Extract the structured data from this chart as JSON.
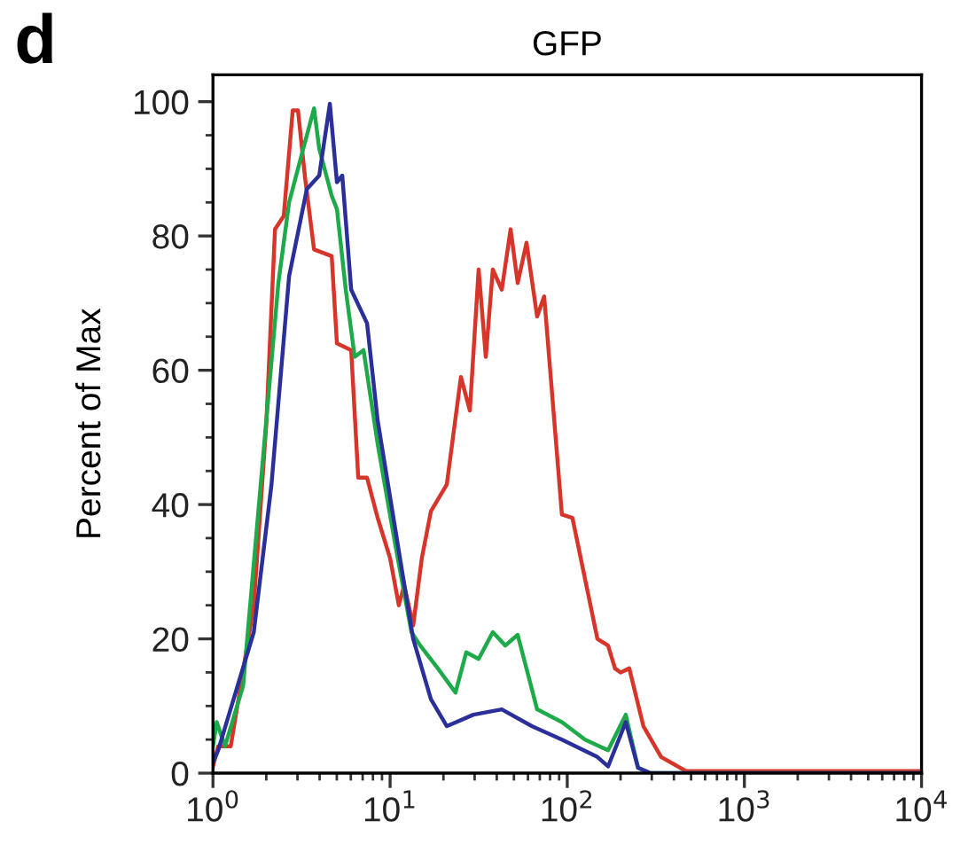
{
  "chart_data": {
    "type": "line",
    "title": "GFP",
    "ylabel": "Percent of Max",
    "annotations": [
      "d"
    ],
    "log": "x",
    "xlim": [
      1,
      10000
    ],
    "ylim": [
      0,
      104
    ],
    "xticks": [
      {
        "value": 1,
        "label": "10$^{0}$"
      },
      {
        "value": 2,
        "label": null
      },
      {
        "value": 3,
        "label": null
      },
      {
        "value": 4,
        "label": null
      },
      {
        "value": 5,
        "label": null
      },
      {
        "value": 6,
        "label": null
      },
      {
        "value": 7,
        "label": null
      },
      {
        "value": 8,
        "label": null
      },
      {
        "value": 9,
        "label": null
      },
      {
        "value": 10,
        "label": "10$^{1}$"
      },
      {
        "value": 20,
        "label": null
      },
      {
        "value": 30,
        "label": null
      },
      {
        "value": 40,
        "label": null
      },
      {
        "value": 50,
        "label": null
      },
      {
        "value": 60,
        "label": null
      },
      {
        "value": 70,
        "label": null
      },
      {
        "value": 80,
        "label": null
      },
      {
        "value": 90,
        "label": null
      },
      {
        "value": 100,
        "label": "10$^{2}$"
      },
      {
        "value": 200,
        "label": null
      },
      {
        "value": 300,
        "label": null
      },
      {
        "value": 400,
        "label": null
      },
      {
        "value": 500,
        "label": null
      },
      {
        "value": 600,
        "label": null
      },
      {
        "value": 700,
        "label": null
      },
      {
        "value": 800,
        "label": null
      },
      {
        "value": 900,
        "label": null
      },
      {
        "value": 1000,
        "label": "10$^{3}$"
      },
      {
        "value": 2000,
        "label": null
      },
      {
        "value": 3000,
        "label": null
      },
      {
        "value": 4000,
        "label": null
      },
      {
        "value": 5000,
        "label": null
      },
      {
        "value": 6000,
        "label": null
      },
      {
        "value": 7000,
        "label": null
      },
      {
        "value": 8000,
        "label": null
      },
      {
        "value": 9000,
        "label": null
      },
      {
        "value": 10000,
        "label": "10$^{4}$"
      }
    ],
    "yticks": [
      0,
      {
        "value": 5,
        "label": null
      },
      {
        "value": 10,
        "label": null
      },
      {
        "value": 15,
        "label": null
      },
      20,
      {
        "value": 25,
        "label": null
      },
      {
        "value": 30,
        "label": null
      },
      {
        "value": 35,
        "label": null
      },
      40,
      {
        "value": 45,
        "label": null
      },
      {
        "value": 50,
        "label": null
      },
      {
        "value": 55,
        "label": null
      },
      60,
      {
        "value": 65,
        "label": null
      },
      {
        "value": 70,
        "label": null
      },
      {
        "value": 75,
        "label": null
      },
      80,
      {
        "value": 85,
        "label": null
      },
      {
        "value": 90,
        "label": null
      },
      {
        "value": 95,
        "label": null
      },
      100
    ],
    "grid": false,
    "marker": "none",
    "line_style": "solid",
    "series": [
      {
        "color": "#d8352a",
        "x": [
          1.0,
          1.07,
          1.26,
          1.7,
          2.0,
          2.24,
          2.51,
          2.82,
          3.02,
          3.31,
          3.72,
          4.68,
          5.01,
          6.03,
          6.61,
          7.41,
          8.51,
          10.0,
          11.2,
          12.0,
          13.5,
          15.1,
          17.0,
          20.9,
          25.1,
          28.2,
          31.6,
          34.7,
          38.0,
          42.7,
          47.9,
          52.5,
          58.9,
          67.6,
          74.1,
          93.3,
          107,
          148,
          170,
          186,
          200,
          224,
          269,
          339,
          468,
          10000
        ],
        "values": [
          1,
          4,
          4,
          25,
          52,
          81,
          83,
          98.7,
          98.7,
          88.7,
          78,
          77,
          64,
          63,
          44,
          44,
          38,
          32,
          25,
          28,
          22,
          32,
          39,
          43,
          59,
          54,
          75,
          62,
          75,
          72,
          81,
          73,
          79,
          68,
          71,
          38.5,
          38,
          20,
          19,
          15.6,
          15,
          15.6,
          7,
          2.4,
          0.3,
          0.3
        ]
      },
      {
        "color": "#1faa4a",
        "x": [
          1.0,
          1.05,
          1.17,
          1.48,
          1.86,
          2.34,
          2.69,
          3.16,
          3.72,
          3.98,
          4.68,
          5.01,
          5.62,
          6.31,
          7.08,
          8.51,
          10.7,
          13.2,
          14.8,
          18.6,
          23.4,
          26.9,
          31.6,
          38.0,
          44.7,
          52.5,
          67.6,
          93.3,
          126,
          170,
          214,
          251,
          295,
          10000
        ],
        "values": [
          4,
          7.6,
          4,
          13,
          43,
          73,
          85,
          92,
          99,
          93,
          86,
          84,
          72,
          62,
          63,
          49,
          34,
          21,
          19,
          15.6,
          12,
          18,
          17,
          21,
          19,
          20.6,
          9.5,
          7.6,
          5,
          3.4,
          8.7,
          0.8,
          0,
          0
        ]
      },
      {
        "color": "#2b2f9a",
        "x": [
          1.0,
          1.07,
          1.7,
          2.14,
          2.69,
          3.39,
          3.98,
          4.57,
          5.01,
          5.37,
          6.03,
          7.41,
          8.51,
          11.7,
          13.5,
          17.0,
          20.9,
          29.5,
          42.7,
          63.1,
          93.3,
          148,
          170,
          214,
          251,
          295,
          10000
        ],
        "values": [
          1.6,
          3.4,
          21,
          43,
          74,
          87,
          89,
          99.7,
          88,
          89,
          72,
          67,
          52.5,
          30,
          20,
          11,
          7,
          8.7,
          9.5,
          7,
          5,
          2.4,
          1,
          7.6,
          0.8,
          0,
          0
        ]
      }
    ]
  }
}
